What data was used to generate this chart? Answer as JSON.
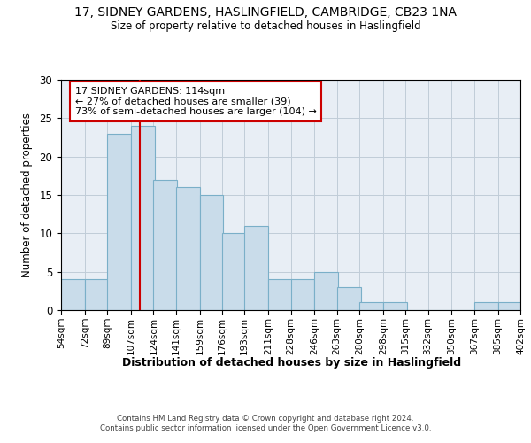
{
  "title_line1": "17, SIDNEY GARDENS, HASLINGFIELD, CAMBRIDGE, CB23 1NA",
  "title_line2": "Size of property relative to detached houses in Haslingfield",
  "xlabel": "Distribution of detached houses by size in Haslingfield",
  "ylabel": "Number of detached properties",
  "bin_edges": [
    54,
    72,
    89,
    107,
    124,
    141,
    159,
    176,
    193,
    211,
    228,
    246,
    263,
    280,
    298,
    315,
    332,
    350,
    367,
    385,
    402
  ],
  "bar_heights": [
    4,
    4,
    23,
    24,
    17,
    16,
    15,
    10,
    11,
    4,
    4,
    5,
    3,
    1,
    1,
    0,
    0,
    0,
    1,
    1
  ],
  "bar_color": "#c9dcea",
  "bar_edge_color": "#7aafc8",
  "bg_color": "#e8eef5",
  "grid_color": "#c0ccd8",
  "vline_x": 114,
  "vline_color": "#cc0000",
  "annotation_line1": "17 SIDNEY GARDENS: 114sqm",
  "annotation_line2": "← 27% of detached houses are smaller (39)",
  "annotation_line3": "73% of semi-detached houses are larger (104) →",
  "annotation_box_facecolor": "#ffffff",
  "annotation_box_edgecolor": "#cc0000",
  "ylim": [
    0,
    30
  ],
  "yticks": [
    0,
    5,
    10,
    15,
    20,
    25,
    30
  ],
  "footer_line1": "Contains HM Land Registry data © Crown copyright and database right 2024.",
  "footer_line2": "Contains public sector information licensed under the Open Government Licence v3.0."
}
